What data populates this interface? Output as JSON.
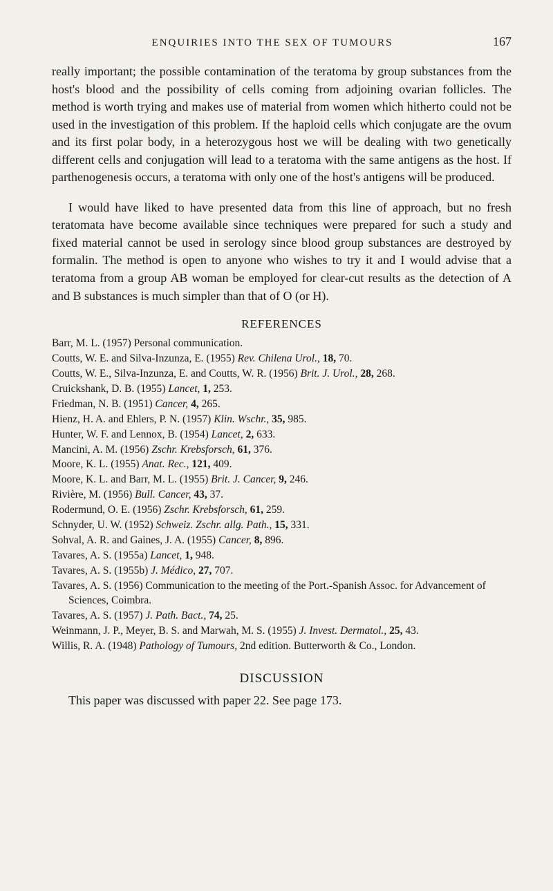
{
  "header": {
    "running_head": "ENQUIRIES INTO THE SEX OF TUMOURS",
    "page_number": "167"
  },
  "paragraphs": {
    "p1": "really important; the possible contamination of the teratoma by group substances from the host's blood and the possibility of cells coming from adjoining ovarian follicles. The method is worth trying and makes use of material from women which hitherto could not be used in the investigation of this problem. If the haploid cells which conjugate are the ovum and its first polar body, in a hetero­zygous host we will be dealing with two genetically different cells and conjugation will lead to a teratoma with the same antigens as the host. If parthenogenesis occurs, a teratoma with only one of the host's antigens will be produced.",
    "p2": "I would have liked to have presented data from this line of approach, but no fresh teratomata have become available since techniques were prepared for such a study and fixed material cannot be used in serology since blood group substances are destroyed by formalin. The method is open to anyone who wishes to try it and I would advise that a teratoma from a group AB woman be employed for clear-cut results as the detection of A and B substances is much simpler than that of O (or H)."
  },
  "references": {
    "heading": "REFERENCES",
    "entries": [
      {
        "text": "Barr, M. L. (1957) Personal communication."
      },
      {
        "pre": "Coutts, W. E. and Silva-Inzunza, E. (1955) ",
        "ital": "Rev. Chilena Urol.,",
        "post": " ",
        "vol": "18,",
        "pg": " 70."
      },
      {
        "pre": "Coutts, W. E., Silva-Inzunza, E. and Coutts, W. R. (1956) ",
        "ital": "Brit. J. Urol.,",
        "post": " ",
        "vol": "28,",
        "pg": " 268."
      },
      {
        "pre": "Cruickshank, D. B. (1955) ",
        "ital": "Lancet,",
        "post": " ",
        "vol": "1,",
        "pg": " 253."
      },
      {
        "pre": "Friedman, N. B. (1951) ",
        "ital": "Cancer,",
        "post": " ",
        "vol": "4,",
        "pg": " 265."
      },
      {
        "pre": "Hienz, H. A. and Ehlers, P. N. (1957) ",
        "ital": "Klin. Wschr.,",
        "post": " ",
        "vol": "35,",
        "pg": " 985."
      },
      {
        "pre": "Hunter, W. F. and Lennox, B. (1954) ",
        "ital": "Lancet,",
        "post": " ",
        "vol": "2,",
        "pg": " 633."
      },
      {
        "pre": "Mancini, A. M. (1956) ",
        "ital": "Zschr. Krebsforsch,",
        "post": " ",
        "vol": "61,",
        "pg": " 376."
      },
      {
        "pre": "Moore, K. L. (1955) ",
        "ital": "Anat. Rec.,",
        "post": " ",
        "vol": "121,",
        "pg": " 409."
      },
      {
        "pre": "Moore, K. L. and Barr, M. L. (1955) ",
        "ital": "Brit. J. Cancer,",
        "post": " ",
        "vol": "9,",
        "pg": " 246."
      },
      {
        "pre": "Rivière, M. (1956) ",
        "ital": "Bull. Cancer,",
        "post": " ",
        "vol": "43,",
        "pg": " 37."
      },
      {
        "pre": "Rodermund, O. E. (1956) ",
        "ital": "Zschr. Krebsforsch,",
        "post": " ",
        "vol": "61,",
        "pg": " 259."
      },
      {
        "pre": "Schnyder, U. W. (1952) ",
        "ital": "Schweiz. Zschr. allg. Path.,",
        "post": " ",
        "vol": "15,",
        "pg": " 331."
      },
      {
        "pre": "Sohval, A. R. and Gaines, J. A. (1955) ",
        "ital": "Cancer,",
        "post": " ",
        "vol": "8,",
        "pg": " 896."
      },
      {
        "pre": "Tavares, A. S. (1955a) ",
        "ital": "Lancet,",
        "post": " ",
        "vol": "1,",
        "pg": " 948."
      },
      {
        "pre": "Tavares, A. S. (1955b) ",
        "ital": "J. Médico,",
        "post": " ",
        "vol": "27,",
        "pg": " 707."
      },
      {
        "text": "Tavares, A. S. (1956) Communication to the meeting of the Port.-Spanish Assoc. for Advancement of Sciences, Coimbra."
      },
      {
        "pre": "Tavares, A. S. (1957) ",
        "ital": "J. Path. Bact.,",
        "post": " ",
        "vol": "74,",
        "pg": " 25."
      },
      {
        "pre": "Weinmann, J. P., Meyer, B. S. and Marwah, M. S. (1955) ",
        "ital": "J. Invest. Dermatol.,",
        "post": " ",
        "vol": "25,",
        "pg": " 43."
      },
      {
        "pre": "Willis, R. A. (1948) ",
        "ital": "Pathology of Tumours,",
        "post": " 2nd edition. Butterworth & Co., London."
      }
    ]
  },
  "discussion": {
    "heading": "DISCUSSION",
    "text": "This paper was discussed with paper 22. See page 173."
  }
}
